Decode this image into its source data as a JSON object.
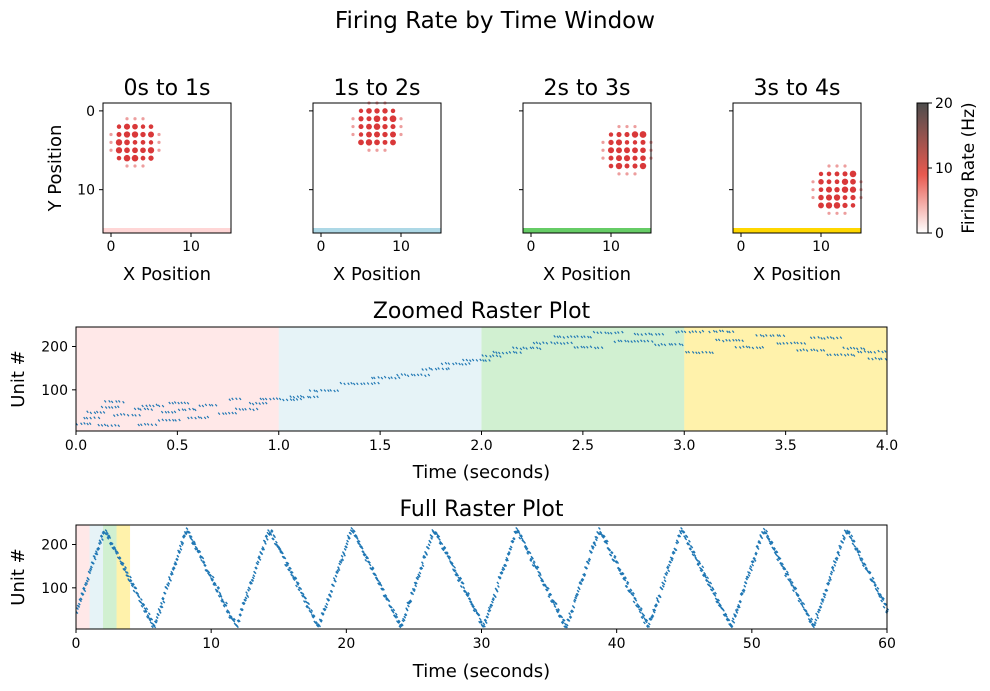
{
  "figure_title": "Firing Rate by Time Window",
  "colors": {
    "raster": "#1f77b4",
    "dot": "#d62728",
    "window_fills": [
      "#ffd6d6",
      "#add8e6",
      "#66cc66",
      "#ffd700"
    ],
    "colorbar_low": "#ffffff",
    "colorbar_mid": "#e8594f",
    "colorbar_high": "#4d4d4d"
  },
  "chart_data": [
    {
      "type": "scatter",
      "title": "0s to 1s",
      "xlabel": "X Position",
      "ylabel": "Y Position",
      "xlim": [
        -1,
        15
      ],
      "ylim": [
        15.5,
        -1
      ],
      "xticks": [
        0,
        10
      ],
      "yticks": [
        0,
        10
      ],
      "window_color": "#ffd6d6",
      "grid_center": [
        3,
        4
      ],
      "points_note": "8x8 grid of units, rate shown as dot size/color",
      "max_rate_hz": 20
    },
    {
      "type": "scatter",
      "title": "1s to 2s",
      "xlabel": "X Position",
      "xlim": [
        -1,
        15
      ],
      "ylim": [
        15.5,
        -1
      ],
      "xticks": [
        0,
        10
      ],
      "yticks": [
        0,
        10
      ],
      "window_color": "#add8e6",
      "grid_center": [
        7,
        2
      ]
    },
    {
      "type": "scatter",
      "title": "2s to 3s",
      "xlabel": "X Position",
      "xlim": [
        -1,
        15
      ],
      "ylim": [
        15.5,
        -1
      ],
      "xticks": [
        0,
        10
      ],
      "yticks": [
        0,
        10
      ],
      "window_color": "#66cc66",
      "grid_center": [
        12,
        5
      ]
    },
    {
      "type": "scatter",
      "title": "3s to 4s",
      "xlabel": "X Position",
      "xlim": [
        -1,
        15
      ],
      "ylim": [
        15.5,
        -1
      ],
      "xticks": [
        0,
        10
      ],
      "yticks": [
        0,
        10
      ],
      "window_color": "#ffd700",
      "grid_center": [
        12,
        10
      ]
    },
    {
      "type": "colorbar",
      "label": "Firing Rate (Hz)",
      "range": [
        0,
        20
      ],
      "ticks": [
        0,
        10,
        20
      ]
    },
    {
      "type": "scatter",
      "title": "Zoomed Raster Plot",
      "xlabel": "Time (seconds)",
      "ylabel": "Unit #",
      "xlim": [
        0,
        4
      ],
      "ylim": [
        5,
        245
      ],
      "xticks": [
        0.0,
        0.5,
        1.0,
        1.5,
        2.0,
        2.5,
        3.0,
        3.5,
        4.0
      ],
      "xtick_labels": [
        "0.0",
        "0.5",
        "1.0",
        "1.5",
        "2.0",
        "2.5",
        "3.0",
        "3.5",
        "4.0"
      ],
      "yticks": [
        100,
        200
      ],
      "windows": [
        [
          0,
          1
        ],
        [
          1,
          2
        ],
        [
          2,
          3
        ],
        [
          3,
          4
        ]
      ],
      "spike_bursts": [
        {
          "t": [
            0.0,
            0.08
          ],
          "u": 22
        },
        {
          "t": [
            0.03,
            0.12
          ],
          "u": 35
        },
        {
          "t": [
            0.05,
            0.15
          ],
          "u": 48
        },
        {
          "t": [
            0.1,
            0.22
          ],
          "u": 18
        },
        {
          "t": [
            0.12,
            0.22
          ],
          "u": 60
        },
        {
          "t": [
            0.14,
            0.24
          ],
          "u": 72
        },
        {
          "t": [
            0.18,
            0.32
          ],
          "u": 42
        },
        {
          "t": [
            0.28,
            0.38
          ],
          "u": 55
        },
        {
          "t": [
            0.3,
            0.4
          ],
          "u": 20
        },
        {
          "t": [
            0.32,
            0.44
          ],
          "u": 64
        },
        {
          "t": [
            0.4,
            0.52
          ],
          "u": 30
        },
        {
          "t": [
            0.42,
            0.5
          ],
          "u": 48
        },
        {
          "t": [
            0.45,
            0.56
          ],
          "u": 70
        },
        {
          "t": [
            0.5,
            0.6
          ],
          "u": 55
        },
        {
          "t": [
            0.55,
            0.66
          ],
          "u": 36
        },
        {
          "t": [
            0.6,
            0.7
          ],
          "u": 64
        },
        {
          "t": [
            0.7,
            0.8
          ],
          "u": 45
        },
        {
          "t": [
            0.75,
            0.82
          ],
          "u": 78
        },
        {
          "t": [
            0.78,
            0.9
          ],
          "u": 55
        },
        {
          "t": [
            0.85,
            0.95
          ],
          "u": 68
        },
        {
          "t": [
            0.9,
            1.0
          ],
          "u": 80
        },
        {
          "t": [
            1.0,
            1.12
          ],
          "u": 78
        },
        {
          "t": [
            1.05,
            1.2
          ],
          "u": 84
        },
        {
          "t": [
            1.15,
            1.3
          ],
          "u": 98
        },
        {
          "t": [
            1.3,
            1.5
          ],
          "u": 115
        },
        {
          "t": [
            1.45,
            1.6
          ],
          "u": 128
        },
        {
          "t": [
            1.58,
            1.75
          ],
          "u": 134
        },
        {
          "t": [
            1.7,
            1.85
          ],
          "u": 148
        },
        {
          "t": [
            1.8,
            1.95
          ],
          "u": 160
        },
        {
          "t": [
            1.9,
            2.05
          ],
          "u": 168
        },
        {
          "t": [
            2.0,
            2.1
          ],
          "u": 178
        },
        {
          "t": [
            2.05,
            2.2
          ],
          "u": 186
        },
        {
          "t": [
            2.15,
            2.3
          ],
          "u": 196
        },
        {
          "t": [
            2.25,
            2.45
          ],
          "u": 208
        },
        {
          "t": [
            2.35,
            2.55
          ],
          "u": 222
        },
        {
          "t": [
            2.45,
            2.6
          ],
          "u": 198
        },
        {
          "t": [
            2.55,
            2.7
          ],
          "u": 232
        },
        {
          "t": [
            2.65,
            2.85
          ],
          "u": 212
        },
        {
          "t": [
            2.75,
            2.9
          ],
          "u": 228
        },
        {
          "t": [
            2.85,
            3.0
          ],
          "u": 204
        },
        {
          "t": [
            2.95,
            3.1
          ],
          "u": 234
        },
        {
          "t": [
            3.0,
            3.15
          ],
          "u": 186
        },
        {
          "t": [
            3.12,
            3.25
          ],
          "u": 235
        },
        {
          "t": [
            3.15,
            3.3
          ],
          "u": 214
        },
        {
          "t": [
            3.25,
            3.4
          ],
          "u": 198
        },
        {
          "t": [
            3.35,
            3.5
          ],
          "u": 225
        },
        {
          "t": [
            3.45,
            3.6
          ],
          "u": 208
        },
        {
          "t": [
            3.55,
            3.7
          ],
          "u": 192
        },
        {
          "t": [
            3.62,
            3.78
          ],
          "u": 220
        },
        {
          "t": [
            3.7,
            3.85
          ],
          "u": 180
        },
        {
          "t": [
            3.78,
            3.9
          ],
          "u": 196
        },
        {
          "t": [
            3.85,
            4.0
          ],
          "u": 188
        },
        {
          "t": [
            3.9,
            4.0
          ],
          "u": 172
        }
      ]
    },
    {
      "type": "scatter",
      "title": "Full Raster Plot",
      "xlabel": "Time (seconds)",
      "ylabel": "Unit #",
      "xlim": [
        0,
        60
      ],
      "ylim": [
        5,
        245
      ],
      "xticks": [
        0,
        10,
        20,
        30,
        40,
        50,
        60
      ],
      "yticks": [
        100,
        200
      ],
      "windows": [
        [
          0,
          1
        ],
        [
          1,
          2
        ],
        [
          2,
          3
        ],
        [
          3,
          4
        ]
      ],
      "wave_period_s": 6.1,
      "wave_peak_times_s": [
        3.0,
        9.1,
        15.2,
        21.3,
        27.4,
        33.5,
        39.6,
        45.7,
        51.8,
        57.9
      ],
      "unit_range": [
        10,
        235
      ]
    }
  ]
}
